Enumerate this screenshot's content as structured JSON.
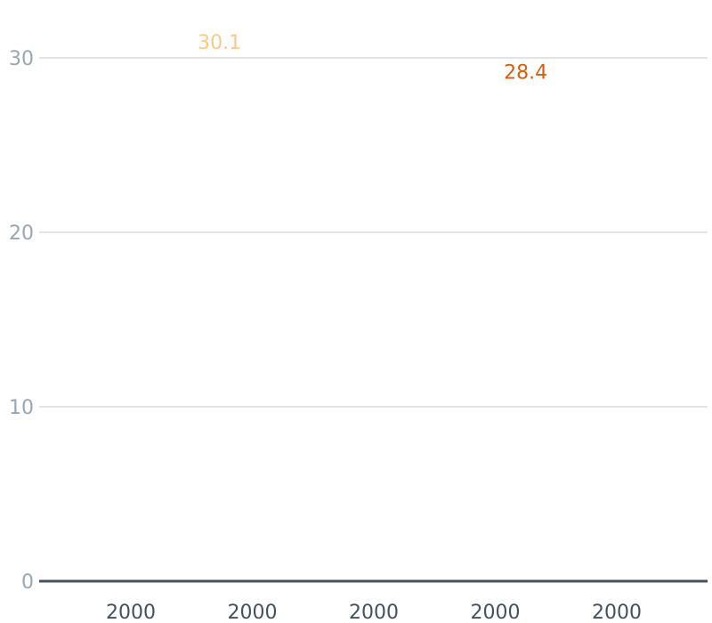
{
  "chart_data": {
    "type": "line",
    "title": "",
    "xlabel": "",
    "ylabel": "",
    "ylim": [
      0,
      30
    ],
    "y_ticks": [
      "0",
      "10",
      "20",
      "30"
    ],
    "x_tick_labels": [
      "2000",
      "2000",
      "2000",
      "2000",
      "2000"
    ],
    "grid": true,
    "legend": "none",
    "series": [
      {
        "color": "#f9c98a",
        "points": [
          {
            "x_index": 0.73,
            "y": 30.1,
            "label": "30.1"
          }
        ]
      },
      {
        "color": "#d45f0f",
        "points": [
          {
            "x_index": 3.25,
            "y": 28.4,
            "label": "28.4"
          }
        ]
      }
    ],
    "colors": {
      "gridline": "#c4c9ce",
      "baseline": "#44525e",
      "ytick_text": "#9aa6b2",
      "xtick_text": "#44525e"
    }
  }
}
